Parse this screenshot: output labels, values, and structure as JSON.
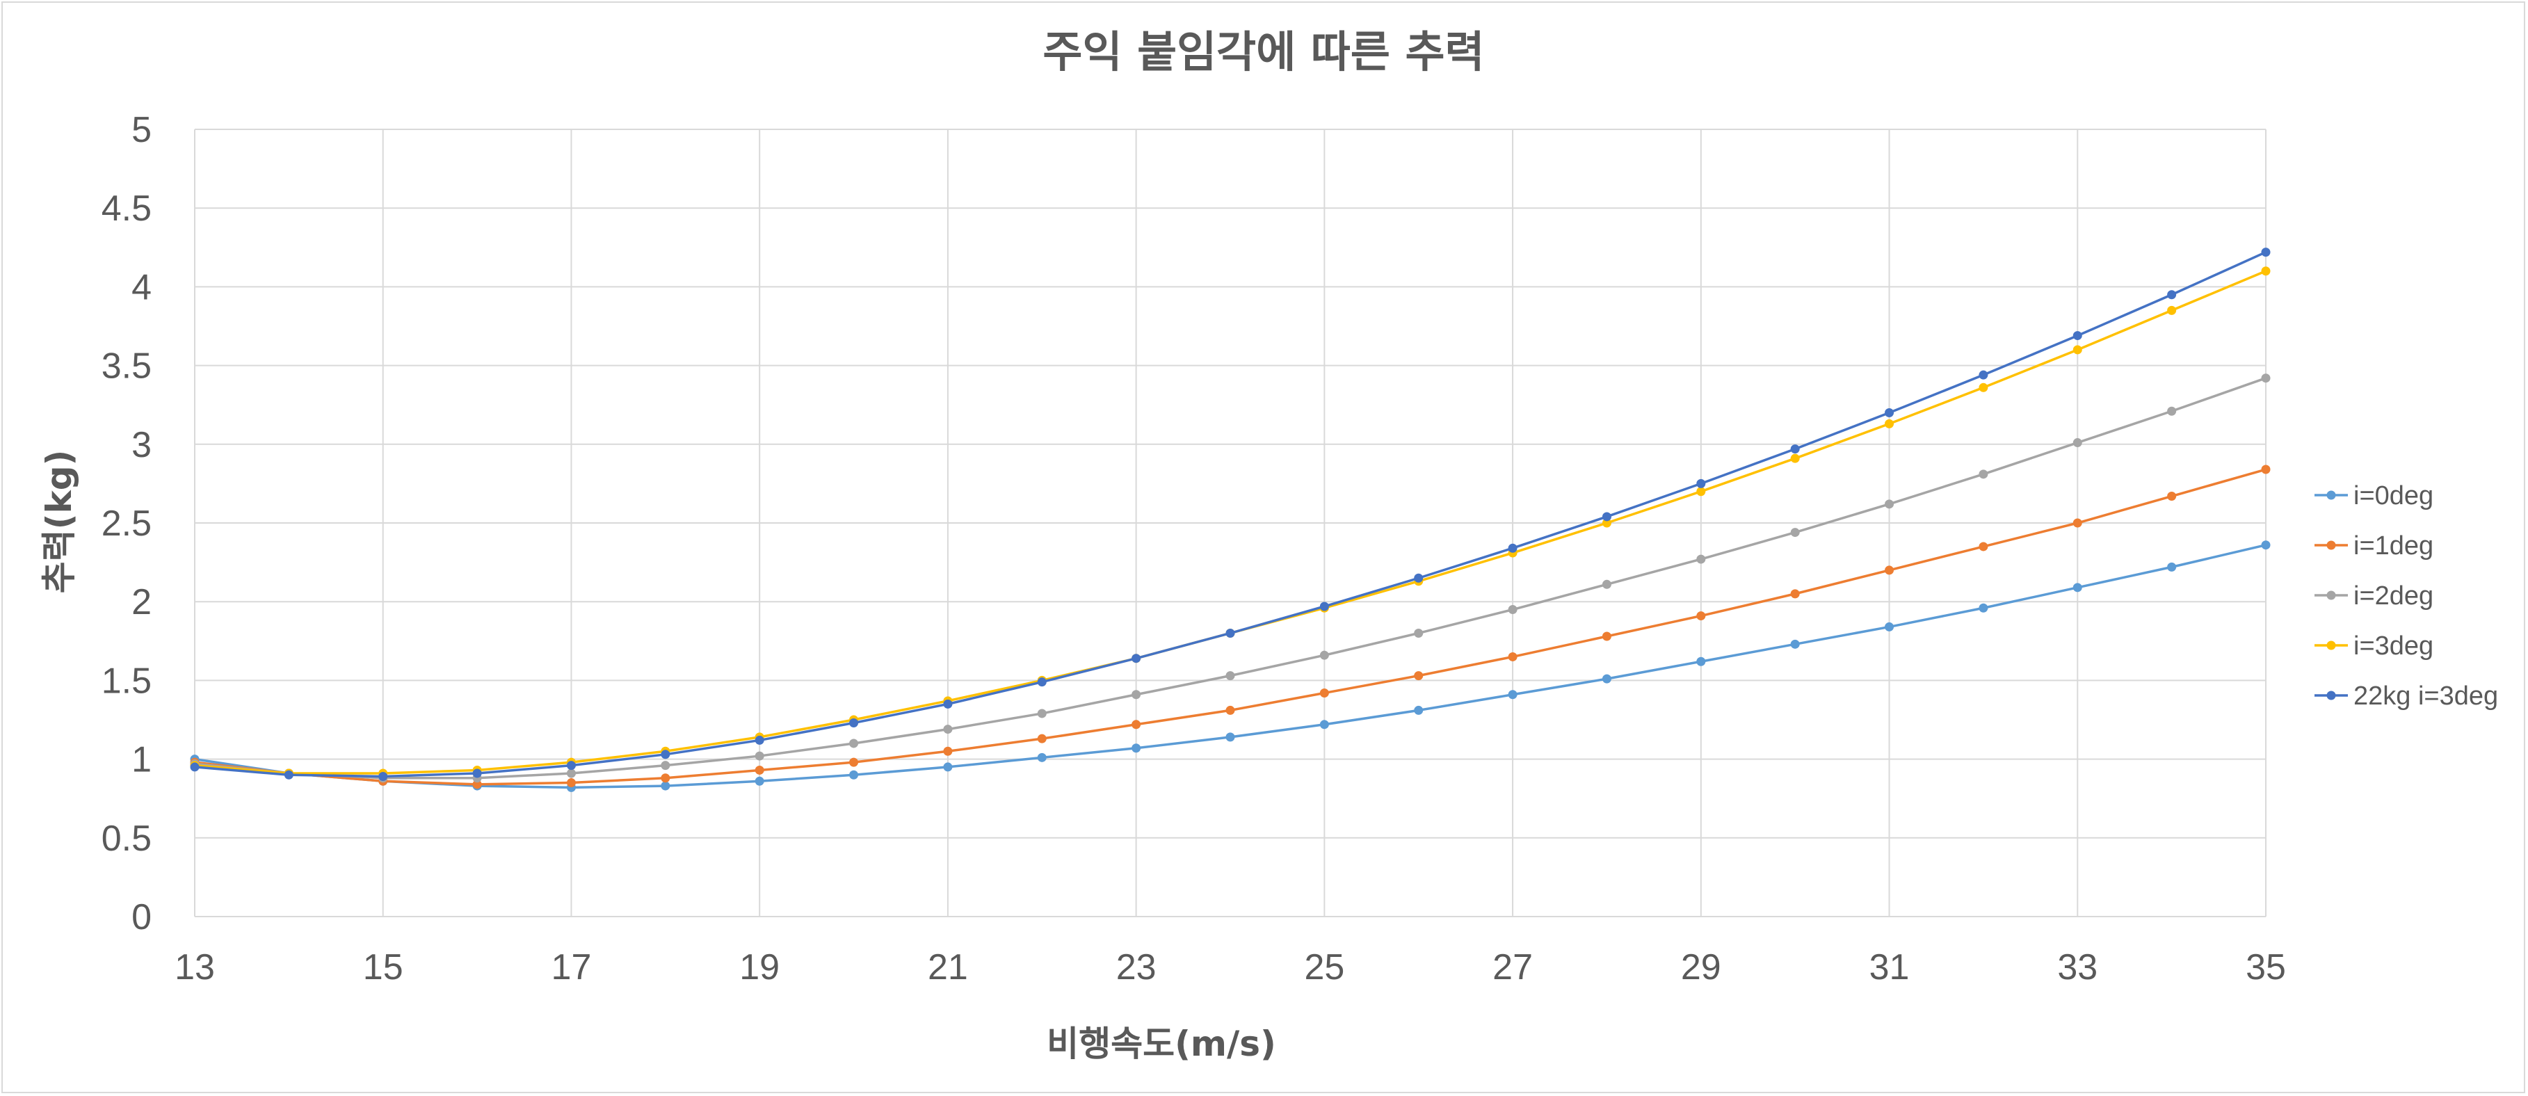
{
  "chart_data": {
    "type": "line",
    "title": "주익 붙임각에 따른 추력",
    "xlabel": "비행속도(m/s)",
    "ylabel": "추력(kg)",
    "xlim": [
      13,
      35
    ],
    "ylim": [
      0,
      5
    ],
    "x_ticks": [
      "13",
      "15",
      "17",
      "19",
      "21",
      "23",
      "25",
      "27",
      "29",
      "31",
      "33",
      "35"
    ],
    "y_ticks": [
      "0",
      "0.5",
      "1",
      "1.5",
      "2",
      "2.5",
      "3",
      "3.5",
      "4",
      "4.5",
      "5"
    ],
    "grid": true,
    "legend_position": "right",
    "x": [
      13,
      14,
      15,
      16,
      17,
      18,
      19,
      20,
      21,
      22,
      23,
      24,
      25,
      26,
      27,
      28,
      29,
      30,
      31,
      32,
      33,
      34,
      35
    ],
    "series": [
      {
        "name": "i=0deg",
        "color": "#5b9bd5",
        "values": [
          1.0,
          0.91,
          0.86,
          0.83,
          0.82,
          0.83,
          0.86,
          0.9,
          0.95,
          1.01,
          1.07,
          1.14,
          1.22,
          1.31,
          1.41,
          1.51,
          1.62,
          1.73,
          1.84,
          1.96,
          2.09,
          2.22,
          2.36
        ]
      },
      {
        "name": "i=1deg",
        "color": "#ed7d31",
        "values": [
          0.98,
          0.91,
          0.86,
          0.84,
          0.85,
          0.88,
          0.93,
          0.98,
          1.05,
          1.13,
          1.22,
          1.31,
          1.42,
          1.53,
          1.65,
          1.78,
          1.91,
          2.05,
          2.2,
          2.35,
          2.5,
          2.67,
          2.84
        ]
      },
      {
        "name": "i=2deg",
        "color": "#a5a5a5",
        "values": [
          0.97,
          0.91,
          0.88,
          0.88,
          0.91,
          0.96,
          1.02,
          1.1,
          1.19,
          1.29,
          1.41,
          1.53,
          1.66,
          1.8,
          1.95,
          2.11,
          2.27,
          2.44,
          2.62,
          2.81,
          3.01,
          3.21,
          3.42
        ]
      },
      {
        "name": "i=3deg",
        "color": "#ffc000",
        "values": [
          0.96,
          0.91,
          0.91,
          0.93,
          0.98,
          1.05,
          1.14,
          1.25,
          1.37,
          1.5,
          1.64,
          1.8,
          1.96,
          2.13,
          2.31,
          2.5,
          2.7,
          2.91,
          3.13,
          3.36,
          3.6,
          3.85,
          4.1
        ]
      },
      {
        "name": "22kg i=3deg",
        "color": "#4472c4",
        "values": [
          0.95,
          0.9,
          0.89,
          0.91,
          0.96,
          1.03,
          1.12,
          1.23,
          1.35,
          1.49,
          1.64,
          1.8,
          1.97,
          2.15,
          2.34,
          2.54,
          2.75,
          2.97,
          3.2,
          3.44,
          3.69,
          3.95,
          4.22
        ]
      }
    ]
  },
  "colors": {
    "grid": "#d9d9d9",
    "text": "#595959",
    "frame": "#d9d9d9"
  }
}
